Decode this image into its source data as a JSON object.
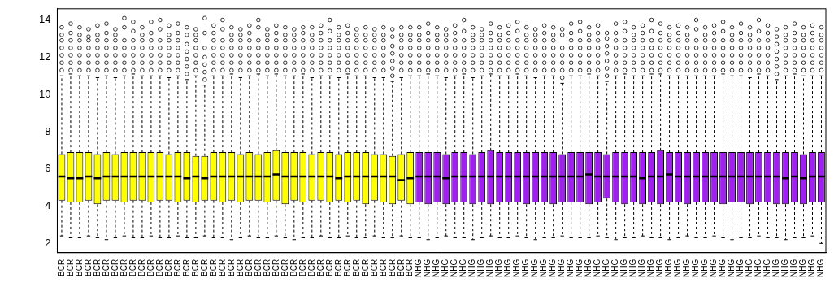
{
  "chart_data": {
    "type": "boxplot",
    "categories": [
      "BCR",
      "BCR",
      "BCR",
      "BCR",
      "BCR",
      "BCR",
      "BCR",
      "BCR",
      "BCR",
      "BCR",
      "BCR",
      "BCR",
      "BCR",
      "BCR",
      "BCR",
      "BCR",
      "BCR",
      "BCR",
      "BCR",
      "BCR",
      "BCR",
      "BCR",
      "BCR",
      "BCR",
      "BCR",
      "BCR",
      "BCR",
      "BCR",
      "BCR",
      "BCR",
      "BCR",
      "BCR",
      "BCR",
      "BCR",
      "BCR",
      "BCR",
      "BCR",
      "BCR",
      "BCR",
      "BCR",
      "NHG",
      "NHG",
      "NHG",
      "NHG",
      "NHG",
      "NHG",
      "NHG",
      "NHG",
      "NHG",
      "NHG",
      "NHG",
      "NHG",
      "NHG",
      "NHG",
      "NHG",
      "NHG",
      "NHG",
      "NHG",
      "NHG",
      "NHG",
      "NHG",
      "NHG",
      "NHG",
      "NHG",
      "NHG",
      "NHG",
      "NHG",
      "NHG",
      "NHG",
      "NHG",
      "NHG",
      "NHG",
      "NHG",
      "NHG",
      "NHG",
      "NHG",
      "NHG",
      "NHG",
      "NHG",
      "NHG",
      "NHG",
      "NHG",
      "NHG",
      "NHG",
      "NHG",
      "NHG"
    ],
    "colors": [
      "#ffff00",
      "#ffff00",
      "#ffff00",
      "#ffff00",
      "#ffff00",
      "#ffff00",
      "#ffff00",
      "#ffff00",
      "#ffff00",
      "#ffff00",
      "#ffff00",
      "#ffff00",
      "#ffff00",
      "#ffff00",
      "#ffff00",
      "#ffff00",
      "#ffff00",
      "#ffff00",
      "#ffff00",
      "#ffff00",
      "#ffff00",
      "#ffff00",
      "#ffff00",
      "#ffff00",
      "#ffff00",
      "#ffff00",
      "#ffff00",
      "#ffff00",
      "#ffff00",
      "#ffff00",
      "#ffff00",
      "#ffff00",
      "#ffff00",
      "#ffff00",
      "#ffff00",
      "#ffff00",
      "#ffff00",
      "#ffff00",
      "#ffff00",
      "#ffff00",
      "#a020f0",
      "#a020f0",
      "#a020f0",
      "#a020f0",
      "#a020f0",
      "#a020f0",
      "#a020f0",
      "#a020f0",
      "#a020f0",
      "#a020f0",
      "#a020f0",
      "#a020f0",
      "#a020f0",
      "#a020f0",
      "#a020f0",
      "#a020f0",
      "#a020f0",
      "#a020f0",
      "#a020f0",
      "#a020f0",
      "#a020f0",
      "#a020f0",
      "#a020f0",
      "#a020f0",
      "#a020f0",
      "#a020f0",
      "#a020f0",
      "#a020f0",
      "#a020f0",
      "#a020f0",
      "#a020f0",
      "#a020f0",
      "#a020f0",
      "#a020f0",
      "#a020f0",
      "#a020f0",
      "#a020f0",
      "#a020f0",
      "#a020f0",
      "#a020f0",
      "#a020f0",
      "#a020f0",
      "#a020f0",
      "#a020f0",
      "#a020f0",
      "#a020f0"
    ],
    "whisker_low": [
      2.4,
      2.3,
      2.3,
      2.4,
      2.3,
      2.2,
      2.3,
      2.4,
      2.3,
      2.3,
      2.4,
      2.3,
      2.3,
      2.4,
      2.3,
      2.3,
      2.4,
      2.3,
      2.3,
      2.2,
      2.3,
      2.4,
      2.3,
      2.3,
      2.4,
      2.3,
      2.2,
      2.3,
      2.3,
      2.4,
      2.3,
      2.3,
      2.4,
      2.3,
      2.3,
      2.4,
      2.3,
      2.3,
      2.4,
      2.3,
      2.3,
      2.2,
      2.3,
      2.4,
      2.3,
      2.3,
      2.2,
      2.3,
      2.4,
      2.3,
      2.3,
      2.4,
      2.3,
      2.2,
      2.3,
      2.3,
      2.4,
      2.3,
      2.3,
      2.3,
      2.4,
      2.3,
      2.2,
      2.3,
      2.3,
      2.4,
      2.3,
      2.3,
      2.2,
      2.3,
      2.4,
      2.3,
      2.3,
      2.4,
      2.3,
      2.2,
      2.3,
      2.3,
      2.4,
      2.3,
      2.3,
      2.2,
      2.3,
      2.3,
      2.4,
      2.0
    ],
    "q1": [
      4.3,
      4.2,
      4.2,
      4.3,
      4.1,
      4.3,
      4.3,
      4.2,
      4.3,
      4.3,
      4.2,
      4.3,
      4.3,
      4.2,
      4.3,
      4.2,
      4.3,
      4.3,
      4.2,
      4.3,
      4.2,
      4.3,
      4.3,
      4.2,
      4.3,
      4.1,
      4.3,
      4.2,
      4.3,
      4.3,
      4.2,
      4.3,
      4.2,
      4.3,
      4.1,
      4.3,
      4.2,
      4.1,
      4.3,
      4.1,
      4.2,
      4.1,
      4.2,
      4.1,
      4.2,
      4.2,
      4.1,
      4.2,
      4.1,
      4.2,
      4.2,
      4.2,
      4.1,
      4.2,
      4.2,
      4.1,
      4.2,
      4.2,
      4.2,
      4.1,
      4.2,
      4.4,
      4.2,
      4.1,
      4.2,
      4.1,
      4.2,
      4.1,
      4.2,
      4.2,
      4.1,
      4.2,
      4.2,
      4.2,
      4.1,
      4.2,
      4.2,
      4.1,
      4.2,
      4.2,
      4.1,
      4.1,
      4.2,
      4.1,
      4.2,
      4.2
    ],
    "median": [
      5.6,
      5.5,
      5.5,
      5.6,
      5.5,
      5.6,
      5.6,
      5.6,
      5.6,
      5.6,
      5.6,
      5.6,
      5.6,
      5.6,
      5.5,
      5.6,
      5.5,
      5.6,
      5.6,
      5.6,
      5.6,
      5.6,
      5.6,
      5.6,
      5.7,
      5.6,
      5.6,
      5.6,
      5.6,
      5.6,
      5.6,
      5.5,
      5.6,
      5.6,
      5.6,
      5.6,
      5.6,
      5.6,
      5.4,
      5.5,
      5.6,
      5.6,
      5.6,
      5.5,
      5.6,
      5.6,
      5.6,
      5.6,
      5.6,
      5.6,
      5.6,
      5.6,
      5.6,
      5.6,
      5.6,
      5.6,
      5.6,
      5.6,
      5.6,
      5.7,
      5.6,
      5.6,
      5.6,
      5.6,
      5.6,
      5.5,
      5.6,
      5.6,
      5.7,
      5.6,
      5.6,
      5.6,
      5.6,
      5.6,
      5.6,
      5.6,
      5.6,
      5.6,
      5.6,
      5.6,
      5.6,
      5.5,
      5.6,
      5.5,
      5.6,
      5.6
    ],
    "q3": [
      6.8,
      6.9,
      6.9,
      6.9,
      6.8,
      6.9,
      6.8,
      6.9,
      6.9,
      6.9,
      6.9,
      6.9,
      6.8,
      6.9,
      6.9,
      6.7,
      6.7,
      6.9,
      6.9,
      6.9,
      6.8,
      6.9,
      6.8,
      6.9,
      7.0,
      6.9,
      6.9,
      6.9,
      6.8,
      6.9,
      6.9,
      6.8,
      6.9,
      6.9,
      6.9,
      6.8,
      6.8,
      6.7,
      6.8,
      6.9,
      6.9,
      6.9,
      6.9,
      6.8,
      6.9,
      6.9,
      6.8,
      6.9,
      7.0,
      6.9,
      6.9,
      6.9,
      6.9,
      6.9,
      6.9,
      6.9,
      6.8,
      6.9,
      6.9,
      6.9,
      6.9,
      6.8,
      6.9,
      6.9,
      6.9,
      6.9,
      6.9,
      7.0,
      6.9,
      6.9,
      6.9,
      6.9,
      6.9,
      6.9,
      6.9,
      6.9,
      6.9,
      6.9,
      6.9,
      6.9,
      6.9,
      6.9,
      6.9,
      6.8,
      6.9,
      6.9
    ],
    "whisker_high": [
      11.0,
      11.1,
      11.0,
      11.0,
      10.9,
      11.0,
      10.9,
      11.0,
      11.1,
      11.0,
      11.0,
      11.0,
      10.9,
      11.0,
      10.8,
      11.0,
      10.5,
      11.0,
      11.0,
      11.1,
      10.9,
      11.0,
      11.1,
      11.0,
      11.1,
      11.0,
      11.0,
      11.1,
      10.9,
      11.0,
      11.0,
      10.9,
      11.1,
      11.0,
      11.0,
      10.9,
      10.9,
      10.7,
      10.9,
      11.0,
      11.0,
      11.1,
      11.0,
      10.9,
      11.0,
      11.1,
      10.9,
      11.0,
      11.1,
      11.0,
      11.0,
      11.1,
      11.0,
      10.9,
      11.0,
      11.0,
      10.6,
      11.0,
      11.0,
      11.1,
      11.0,
      10.7,
      11.0,
      11.1,
      11.0,
      11.0,
      11.1,
      11.1,
      11.0,
      11.0,
      11.0,
      11.0,
      11.0,
      11.0,
      11.1,
      11.0,
      11.0,
      10.9,
      11.1,
      11.0,
      10.8,
      11.0,
      11.1,
      11.0,
      11.0,
      11.0
    ],
    "outliers": [
      [
        11.3,
        11.7,
        12.1,
        12.5,
        12.9,
        13.2,
        13.6
      ],
      [
        11.3,
        11.7,
        12.1,
        12.5,
        12.9,
        13.3,
        13.8
      ],
      [
        11.3,
        11.7,
        12.1,
        12.5,
        12.9,
        13.2,
        13.6
      ],
      [
        11.3,
        11.7,
        12.1,
        12.5,
        12.9,
        13.1,
        13.5
      ],
      [
        11.3,
        11.7,
        12.1,
        12.5,
        12.9,
        13.2,
        13.7
      ],
      [
        11.3,
        11.7,
        12.1,
        12.5,
        12.9,
        13.3,
        13.8
      ],
      [
        11.3,
        11.7,
        12.1,
        12.5,
        12.9,
        13.2,
        13.5
      ],
      [
        11.3,
        11.7,
        12.1,
        12.5,
        12.9,
        13.6,
        14.1
      ],
      [
        11.3,
        11.7,
        12.1,
        12.5,
        12.9,
        13.4,
        13.9
      ],
      [
        11.3,
        11.7,
        12.1,
        12.5,
        12.9,
        13.2,
        13.6
      ],
      [
        11.3,
        11.7,
        12.1,
        12.5,
        12.9,
        13.3,
        13.9
      ],
      [
        11.3,
        11.7,
        12.1,
        12.5,
        12.9,
        13.5,
        14.0
      ],
      [
        11.3,
        11.7,
        12.1,
        12.5,
        12.9,
        13.2,
        13.7
      ],
      [
        11.3,
        11.7,
        12.1,
        12.5,
        12.9,
        13.3,
        13.8
      ],
      [
        11.1,
        11.5,
        11.9,
        12.3,
        12.7,
        13.2,
        13.6
      ],
      [
        11.3,
        11.7,
        12.1,
        12.5,
        12.9,
        13.2,
        13.5
      ],
      [
        10.8,
        11.2,
        11.6,
        12.0,
        12.5,
        13.3,
        14.1
      ],
      [
        11.3,
        11.7,
        12.1,
        12.5,
        12.9,
        13.3,
        13.7
      ],
      [
        11.3,
        11.7,
        12.1,
        12.5,
        12.9,
        13.5,
        14.0
      ],
      [
        11.3,
        11.7,
        12.1,
        12.5,
        12.9,
        13.2,
        13.6
      ],
      [
        11.3,
        11.7,
        12.1,
        12.5,
        12.9,
        13.2,
        13.5
      ],
      [
        11.3,
        11.7,
        12.1,
        12.5,
        12.9,
        13.3,
        13.7
      ],
      [
        11.3,
        11.7,
        12.1,
        12.5,
        12.9,
        13.6,
        14.0
      ],
      [
        11.3,
        11.7,
        12.1,
        12.5,
        12.9,
        13.2,
        13.5
      ],
      [
        11.3,
        11.7,
        12.1,
        12.5,
        12.9,
        13.3,
        13.7
      ],
      [
        11.3,
        11.7,
        12.1,
        12.5,
        12.9,
        13.2,
        13.6
      ],
      [
        11.3,
        11.7,
        12.1,
        12.5,
        12.9,
        13.2,
        13.5
      ],
      [
        11.3,
        11.7,
        12.1,
        12.5,
        12.9,
        13.3,
        13.6
      ],
      [
        11.3,
        11.7,
        12.1,
        12.5,
        12.9,
        13.2,
        13.6
      ],
      [
        11.3,
        11.7,
        12.1,
        12.5,
        12.9,
        13.3,
        13.7
      ],
      [
        11.3,
        11.7,
        12.1,
        12.5,
        12.9,
        13.4,
        14.0
      ],
      [
        11.3,
        11.7,
        12.1,
        12.5,
        12.9,
        13.2,
        13.6
      ],
      [
        11.3,
        11.7,
        12.1,
        12.5,
        12.9,
        13.3,
        13.7
      ],
      [
        11.3,
        11.7,
        12.1,
        12.5,
        12.9,
        13.2,
        13.5
      ],
      [
        11.3,
        11.7,
        12.1,
        12.5,
        12.9,
        13.2,
        13.6
      ],
      [
        11.3,
        11.7,
        12.1,
        12.5,
        12.9,
        13.2,
        13.5
      ],
      [
        11.3,
        11.7,
        12.1,
        12.5,
        12.9,
        13.2,
        13.6
      ],
      [
        11.0,
        11.4,
        11.8,
        12.2,
        12.6,
        13.1,
        13.5
      ],
      [
        11.3,
        11.7,
        12.1,
        12.5,
        12.9,
        13.2,
        13.6
      ],
      [
        11.3,
        11.7,
        12.1,
        12.5,
        12.9,
        13.2,
        13.6
      ],
      [
        11.3,
        11.7,
        12.1,
        12.5,
        12.9,
        13.2,
        13.6
      ],
      [
        11.3,
        11.7,
        12.1,
        12.5,
        12.9,
        13.3,
        13.8
      ],
      [
        11.3,
        11.7,
        12.1,
        12.5,
        12.9,
        13.2,
        13.6
      ],
      [
        11.3,
        11.7,
        12.1,
        12.5,
        12.9,
        13.2,
        13.5
      ],
      [
        11.3,
        11.7,
        12.1,
        12.5,
        12.9,
        13.3,
        13.7
      ],
      [
        11.3,
        11.7,
        12.1,
        12.5,
        12.9,
        13.4,
        14.0
      ],
      [
        11.3,
        11.7,
        12.1,
        12.5,
        12.9,
        13.2,
        13.6
      ],
      [
        11.3,
        11.7,
        12.1,
        12.5,
        12.9,
        13.2,
        13.5
      ],
      [
        11.3,
        11.7,
        12.1,
        12.5,
        12.9,
        13.3,
        13.8
      ],
      [
        11.3,
        11.7,
        12.1,
        12.5,
        12.9,
        13.2,
        13.6
      ],
      [
        11.3,
        11.7,
        12.1,
        12.5,
        12.9,
        13.3,
        13.7
      ],
      [
        11.3,
        11.7,
        12.1,
        12.5,
        12.9,
        13.4,
        13.9
      ],
      [
        11.3,
        11.7,
        12.1,
        12.5,
        12.9,
        13.2,
        13.6
      ],
      [
        11.3,
        11.7,
        12.1,
        12.5,
        12.9,
        13.2,
        13.5
      ],
      [
        11.3,
        11.7,
        12.1,
        12.5,
        12.9,
        13.3,
        13.7
      ],
      [
        11.3,
        11.7,
        12.1,
        12.5,
        12.9,
        13.2,
        13.6
      ],
      [
        10.9,
        11.3,
        11.7,
        12.1,
        12.5,
        13.2,
        13.5
      ],
      [
        11.3,
        11.7,
        12.1,
        12.5,
        12.9,
        13.3,
        13.8
      ],
      [
        11.3,
        11.7,
        12.1,
        12.5,
        12.9,
        13.4,
        13.9
      ],
      [
        11.3,
        11.7,
        12.1,
        12.5,
        12.9,
        13.2,
        13.6
      ],
      [
        11.3,
        11.7,
        12.1,
        12.5,
        12.9,
        13.3,
        13.7
      ],
      [
        11.0,
        11.4,
        11.8,
        12.2,
        12.6,
        13.0,
        13.3
      ],
      [
        11.3,
        11.7,
        12.1,
        12.5,
        12.9,
        13.3,
        13.8
      ],
      [
        11.3,
        11.7,
        12.1,
        12.5,
        12.9,
        13.4,
        13.9
      ],
      [
        11.3,
        11.7,
        12.1,
        12.5,
        12.9,
        13.2,
        13.6
      ],
      [
        11.3,
        11.7,
        12.1,
        12.5,
        12.9,
        13.3,
        13.7
      ],
      [
        11.3,
        11.7,
        12.1,
        12.5,
        12.9,
        13.4,
        14.0
      ],
      [
        11.3,
        11.7,
        12.1,
        12.5,
        12.9,
        13.3,
        13.8
      ],
      [
        11.3,
        11.7,
        12.1,
        12.5,
        12.9,
        13.2,
        13.6
      ],
      [
        11.3,
        11.7,
        12.1,
        12.5,
        12.9,
        13.3,
        13.7
      ],
      [
        11.3,
        11.7,
        12.1,
        12.5,
        12.9,
        13.2,
        13.6
      ],
      [
        11.3,
        11.7,
        12.1,
        12.5,
        12.9,
        13.5,
        14.0
      ],
      [
        11.3,
        11.7,
        12.1,
        12.5,
        12.9,
        13.2,
        13.6
      ],
      [
        11.3,
        11.7,
        12.1,
        12.5,
        12.9,
        13.3,
        13.7
      ],
      [
        11.3,
        11.7,
        12.1,
        12.5,
        12.9,
        13.4,
        13.9
      ],
      [
        11.3,
        11.7,
        12.1,
        12.5,
        12.9,
        13.2,
        13.6
      ],
      [
        11.3,
        11.7,
        12.1,
        12.5,
        12.9,
        13.3,
        13.8
      ],
      [
        11.3,
        11.7,
        12.1,
        12.5,
        12.9,
        13.2,
        13.6
      ],
      [
        11.3,
        11.7,
        12.1,
        12.5,
        12.9,
        13.4,
        14.0
      ],
      [
        11.3,
        11.7,
        12.1,
        12.5,
        12.9,
        13.3,
        13.7
      ],
      [
        11.1,
        11.5,
        11.9,
        12.3,
        12.7,
        13.1,
        13.5
      ],
      [
        11.3,
        11.7,
        12.1,
        12.5,
        12.9,
        13.2,
        13.6
      ],
      [
        11.3,
        11.7,
        12.1,
        12.5,
        12.9,
        13.3,
        13.8
      ],
      [
        11.3,
        11.7,
        12.1,
        12.5,
        12.9,
        13.2,
        13.6
      ],
      [
        11.3,
        11.7,
        12.1,
        12.5,
        12.9,
        13.3,
        13.7
      ],
      [
        11.3,
        11.7,
        12.1,
        12.5,
        12.9,
        13.2,
        13.6
      ]
    ],
    "ylim": [
      1.5,
      14.6
    ],
    "yticks": [
      2,
      4,
      6,
      8,
      10,
      12,
      14
    ],
    "grid": false
  }
}
